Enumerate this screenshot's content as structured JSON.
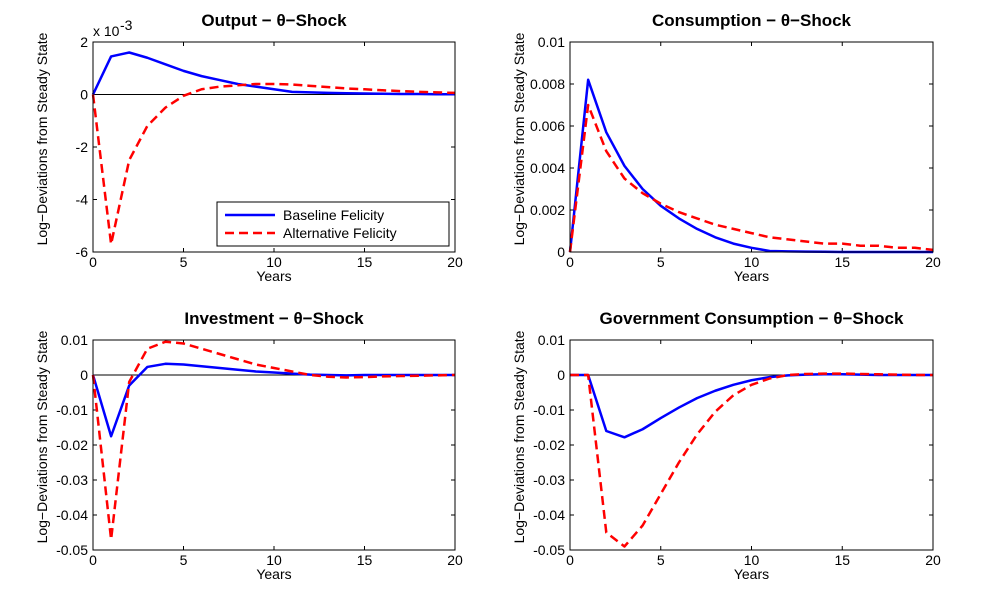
{
  "chart_data": [
    {
      "type": "line",
      "title": "Output − θ−Shock",
      "y_label": "Log−Deviations from Steady State",
      "x_label": "Years",
      "y_multiplier": "x 10",
      "y_multiplier_exponent": "-3",
      "x": [
        0,
        1,
        2,
        3,
        4,
        5,
        6,
        7,
        8,
        9,
        10,
        11,
        12,
        13,
        14,
        15,
        16,
        17,
        18,
        19,
        20
      ],
      "series": [
        {
          "name": "Baseline Felicity",
          "color": "#0000ff",
          "dash": false,
          "values": [
            0,
            1.45,
            1.6,
            1.4,
            1.15,
            0.9,
            0.7,
            0.55,
            0.4,
            0.3,
            0.2,
            0.1,
            0.08,
            0.06,
            0.05,
            0.04,
            0.03,
            0.02,
            0.02,
            0.01,
            0.01
          ]
        },
        {
          "name": "Alternative Felicity",
          "color": "#ff0000",
          "dash": true,
          "values": [
            0,
            -5.7,
            -2.5,
            -1.2,
            -0.5,
            -0.05,
            0.2,
            0.3,
            0.35,
            0.4,
            0.4,
            0.38,
            0.33,
            0.28,
            0.23,
            0.2,
            0.16,
            0.13,
            0.1,
            0.08,
            0.06
          ]
        }
      ],
      "xlim": [
        0,
        20
      ],
      "xticks": [
        0,
        5,
        10,
        15,
        20
      ],
      "ylim": [
        -6,
        2
      ],
      "yticks": [
        -6,
        -4,
        -2,
        0,
        2
      ],
      "zero_line": true,
      "legend": "lower right"
    },
    {
      "type": "line",
      "title": "Consumption − θ−Shock",
      "y_label": "Log−Deviations from Steady State",
      "x_label": "Years",
      "x": [
        0,
        1,
        2,
        3,
        4,
        5,
        6,
        7,
        8,
        9,
        10,
        11,
        12,
        13,
        14,
        15,
        16,
        17,
        18,
        19,
        20
      ],
      "series": [
        {
          "color": "#0000ff",
          "dash": false,
          "values": [
            0,
            0.0082,
            0.0057,
            0.0041,
            0.003,
            0.0022,
            0.0016,
            0.0011,
            0.0007,
            0.0004,
            0.0002,
            5e-05,
            3e-05,
            2e-05,
            1e-05,
            0,
            0,
            0,
            0,
            0,
            0
          ]
        },
        {
          "color": "#ff0000",
          "dash": true,
          "values": [
            0,
            0.007,
            0.0048,
            0.0035,
            0.0028,
            0.0023,
            0.0019,
            0.0016,
            0.0013,
            0.0011,
            0.0009,
            0.0007,
            0.0006,
            0.0005,
            0.0004,
            0.0004,
            0.0003,
            0.0003,
            0.0002,
            0.0002,
            0.0001
          ]
        }
      ],
      "xlim": [
        0,
        20
      ],
      "xticks": [
        0,
        5,
        10,
        15,
        20
      ],
      "ylim": [
        0,
        0.01
      ],
      "yticks": [
        0,
        0.002,
        0.004,
        0.006,
        0.008,
        0.01
      ],
      "zero_line": false
    },
    {
      "type": "line",
      "title": "Investment − θ−Shock",
      "y_label": "Log−Deviations from Steady State",
      "x_label": "Years",
      "x": [
        0,
        1,
        2,
        3,
        4,
        5,
        6,
        7,
        8,
        9,
        10,
        11,
        12,
        13,
        14,
        15,
        16,
        17,
        18,
        19,
        20
      ],
      "series": [
        {
          "color": "#0000ff",
          "dash": false,
          "values": [
            0,
            -0.0175,
            -0.003,
            0.0023,
            0.0032,
            0.003,
            0.0025,
            0.002,
            0.0015,
            0.001,
            0.0007,
            0.0004,
            0.0001,
            0,
            -0.0001,
            0,
            0,
            0,
            0,
            0,
            0
          ]
        },
        {
          "color": "#ff0000",
          "dash": true,
          "values": [
            0,
            -0.047,
            -0.002,
            0.0075,
            0.0095,
            0.009,
            0.0075,
            0.006,
            0.0045,
            0.003,
            0.002,
            0.001,
            0,
            -0.0005,
            -0.0007,
            -0.0006,
            -0.0004,
            -0.0003,
            -0.0002,
            -0.0001,
            0
          ]
        }
      ],
      "xlim": [
        0,
        20
      ],
      "xticks": [
        0,
        5,
        10,
        15,
        20
      ],
      "ylim": [
        -0.05,
        0.01
      ],
      "yticks": [
        -0.05,
        -0.04,
        -0.03,
        -0.02,
        -0.01,
        0,
        0.01
      ],
      "zero_line": true
    },
    {
      "type": "line",
      "title": "Government Consumption − θ−Shock",
      "y_label": "Log−Deviations from Steady State",
      "x_label": "Years",
      "x": [
        0,
        1,
        2,
        3,
        4,
        5,
        6,
        7,
        8,
        9,
        10,
        11,
        12,
        13,
        14,
        15,
        16,
        17,
        18,
        19,
        20
      ],
      "series": [
        {
          "color": "#0000ff",
          "dash": false,
          "values": [
            0,
            0,
            -0.016,
            -0.0178,
            -0.0155,
            -0.0123,
            -0.0093,
            -0.0066,
            -0.0045,
            -0.0028,
            -0.0015,
            -0.0006,
            -0.0001,
            0.0001,
            0.0002,
            0.0002,
            0.0001,
            0,
            0,
            0,
            0
          ]
        },
        {
          "color": "#ff0000",
          "dash": true,
          "values": [
            0,
            0,
            -0.045,
            -0.049,
            -0.043,
            -0.034,
            -0.025,
            -0.017,
            -0.0105,
            -0.0058,
            -0.0028,
            -0.001,
            0,
            0.0003,
            0.0004,
            0.0004,
            0.0003,
            0.0002,
            0.0001,
            0,
            0
          ]
        }
      ],
      "xlim": [
        0,
        20
      ],
      "xticks": [
        0,
        5,
        10,
        15,
        20
      ],
      "ylim": [
        -0.05,
        0.01
      ],
      "yticks": [
        -0.05,
        -0.04,
        -0.03,
        -0.02,
        -0.01,
        0,
        0.01
      ],
      "zero_line": true
    }
  ]
}
